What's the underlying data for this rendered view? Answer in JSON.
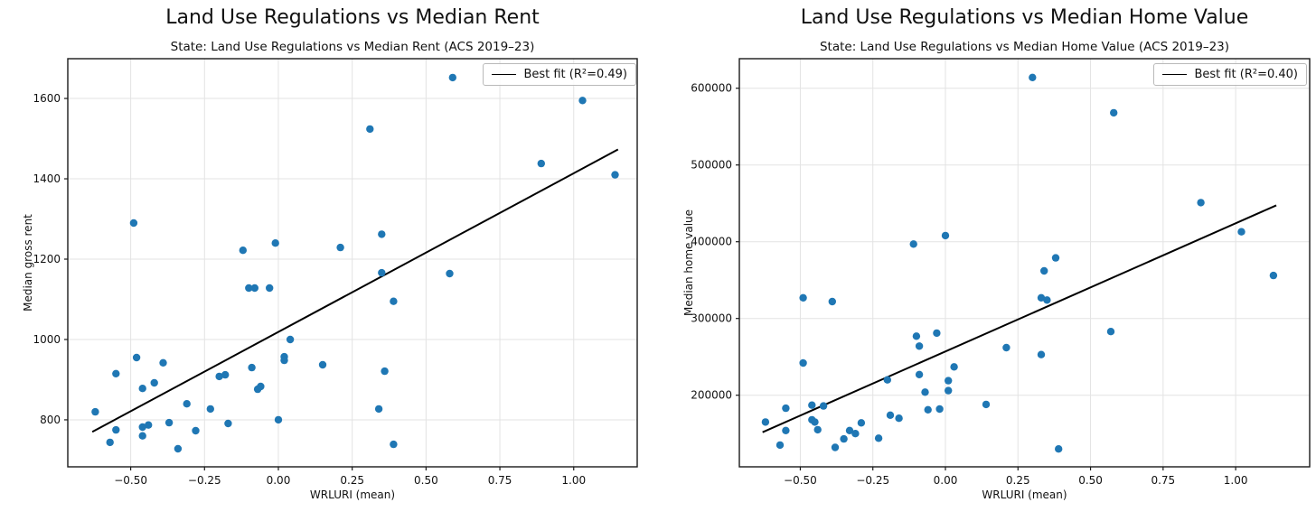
{
  "figure": {
    "background": "#ffffff"
  },
  "chart_data": [
    {
      "type": "scatter",
      "title": "Land Use Regulations vs Median Rent",
      "subtitle": "State: Land Use Regulations vs Median Rent (ACS 2019–23)",
      "xlabel": "WRLURI (mean)",
      "ylabel": "Median gross rent",
      "legend_label": "Best fit (R²=0.49)",
      "legend_position": "upper right",
      "r_squared": 0.49,
      "grid": true,
      "point_color": "#1f77b4",
      "line_color": "#000000",
      "xlim": [
        -0.713,
        1.215
      ],
      "ylim": [
        683,
        1699
      ],
      "xticks": [
        -0.5,
        -0.25,
        0,
        0.25,
        0.5,
        0.75,
        1.0
      ],
      "xtick_labels": [
        "−0.50",
        "−0.25",
        "0.00",
        "0.25",
        "0.50",
        "0.75",
        "1.00"
      ],
      "yticks": [
        800,
        1000,
        1200,
        1400,
        1600
      ],
      "ytick_labels": [
        "800",
        "1000",
        "1200",
        "1400",
        "1600"
      ],
      "best_fit": {
        "x": [
          -0.63,
          1.15
        ],
        "y": [
          770,
          1473
        ]
      },
      "points": [
        [
          -0.62,
          820
        ],
        [
          -0.57,
          744
        ],
        [
          -0.55,
          775
        ],
        [
          -0.55,
          915
        ],
        [
          -0.49,
          1290
        ],
        [
          -0.48,
          955
        ],
        [
          -0.46,
          878
        ],
        [
          -0.46,
          760
        ],
        [
          -0.46,
          782
        ],
        [
          -0.44,
          787
        ],
        [
          -0.42,
          892
        ],
        [
          -0.39,
          942
        ],
        [
          -0.37,
          793
        ],
        [
          -0.34,
          728
        ],
        [
          -0.31,
          840
        ],
        [
          -0.28,
          773
        ],
        [
          -0.23,
          827
        ],
        [
          -0.2,
          908
        ],
        [
          -0.18,
          912
        ],
        [
          -0.17,
          791
        ],
        [
          -0.12,
          1222
        ],
        [
          -0.1,
          1128
        ],
        [
          -0.09,
          930
        ],
        [
          -0.08,
          1128
        ],
        [
          -0.07,
          876
        ],
        [
          -0.06,
          883
        ],
        [
          -0.03,
          1128
        ],
        [
          -0.01,
          1240
        ],
        [
          0.0,
          800
        ],
        [
          0.02,
          957
        ],
        [
          0.02,
          948
        ],
        [
          0.04,
          1000
        ],
        [
          0.15,
          937
        ],
        [
          0.21,
          1229
        ],
        [
          0.31,
          1524
        ],
        [
          0.34,
          827
        ],
        [
          0.35,
          1262
        ],
        [
          0.35,
          1166
        ],
        [
          0.36,
          921
        ],
        [
          0.39,
          1095
        ],
        [
          0.39,
          739
        ],
        [
          0.58,
          1164
        ],
        [
          0.59,
          1652
        ],
        [
          0.89,
          1438
        ],
        [
          1.03,
          1595
        ],
        [
          1.14,
          1410
        ]
      ]
    },
    {
      "type": "scatter",
      "title": "Land Use Regulations vs Median Home Value",
      "subtitle": "State: Land Use Regulations vs Median Home Value (ACS 2019–23)",
      "xlabel": "WRLURI (mean)",
      "ylabel": "Median home value",
      "legend_label": "Best fit (R²=0.40)",
      "legend_position": "upper right",
      "r_squared": 0.4,
      "grid": true,
      "point_color": "#1f77b4",
      "line_color": "#000000",
      "xlim": [
        -0.71,
        1.255
      ],
      "ylim": [
        106700,
        638500
      ],
      "xticks": [
        -0.5,
        -0.25,
        0,
        0.25,
        0.5,
        0.75,
        1.0
      ],
      "xtick_labels": [
        "−0.50",
        "−0.25",
        "0.00",
        "0.25",
        "0.50",
        "0.75",
        "1.00"
      ],
      "yticks": [
        200000,
        300000,
        400000,
        500000,
        600000
      ],
      "ytick_labels": [
        "200000",
        "300000",
        "400000",
        "500000",
        "600000"
      ],
      "best_fit": {
        "x": [
          -0.63,
          1.14
        ],
        "y": [
          151800,
          447400
        ]
      },
      "points": [
        [
          -0.62,
          165000
        ],
        [
          -0.57,
          135000
        ],
        [
          -0.55,
          183000
        ],
        [
          -0.55,
          154000
        ],
        [
          -0.49,
          327000
        ],
        [
          -0.49,
          242000
        ],
        [
          -0.46,
          187000
        ],
        [
          -0.46,
          168000
        ],
        [
          -0.45,
          165000
        ],
        [
          -0.44,
          155000
        ],
        [
          -0.42,
          186000
        ],
        [
          -0.39,
          322000
        ],
        [
          -0.38,
          132000
        ],
        [
          -0.35,
          143000
        ],
        [
          -0.33,
          154000
        ],
        [
          -0.31,
          150000
        ],
        [
          -0.29,
          164000
        ],
        [
          -0.23,
          144000
        ],
        [
          -0.2,
          220000
        ],
        [
          -0.19,
          174000
        ],
        [
          -0.16,
          170000
        ],
        [
          -0.11,
          397000
        ],
        [
          -0.1,
          277000
        ],
        [
          -0.09,
          264000
        ],
        [
          -0.09,
          227000
        ],
        [
          -0.07,
          204000
        ],
        [
          -0.06,
          181000
        ],
        [
          -0.03,
          281000
        ],
        [
          -0.02,
          182000
        ],
        [
          0.0,
          408000
        ],
        [
          0.01,
          219000
        ],
        [
          0.01,
          206000
        ],
        [
          0.03,
          237000
        ],
        [
          0.14,
          188000
        ],
        [
          0.21,
          262000
        ],
        [
          0.3,
          614000
        ],
        [
          0.33,
          327000
        ],
        [
          0.34,
          362000
        ],
        [
          0.35,
          324000
        ],
        [
          0.33,
          253000
        ],
        [
          0.38,
          379000
        ],
        [
          0.39,
          130000
        ],
        [
          0.57,
          283000
        ],
        [
          0.58,
          568000
        ],
        [
          0.88,
          451000
        ],
        [
          1.02,
          413000
        ],
        [
          1.13,
          356000
        ]
      ]
    }
  ]
}
